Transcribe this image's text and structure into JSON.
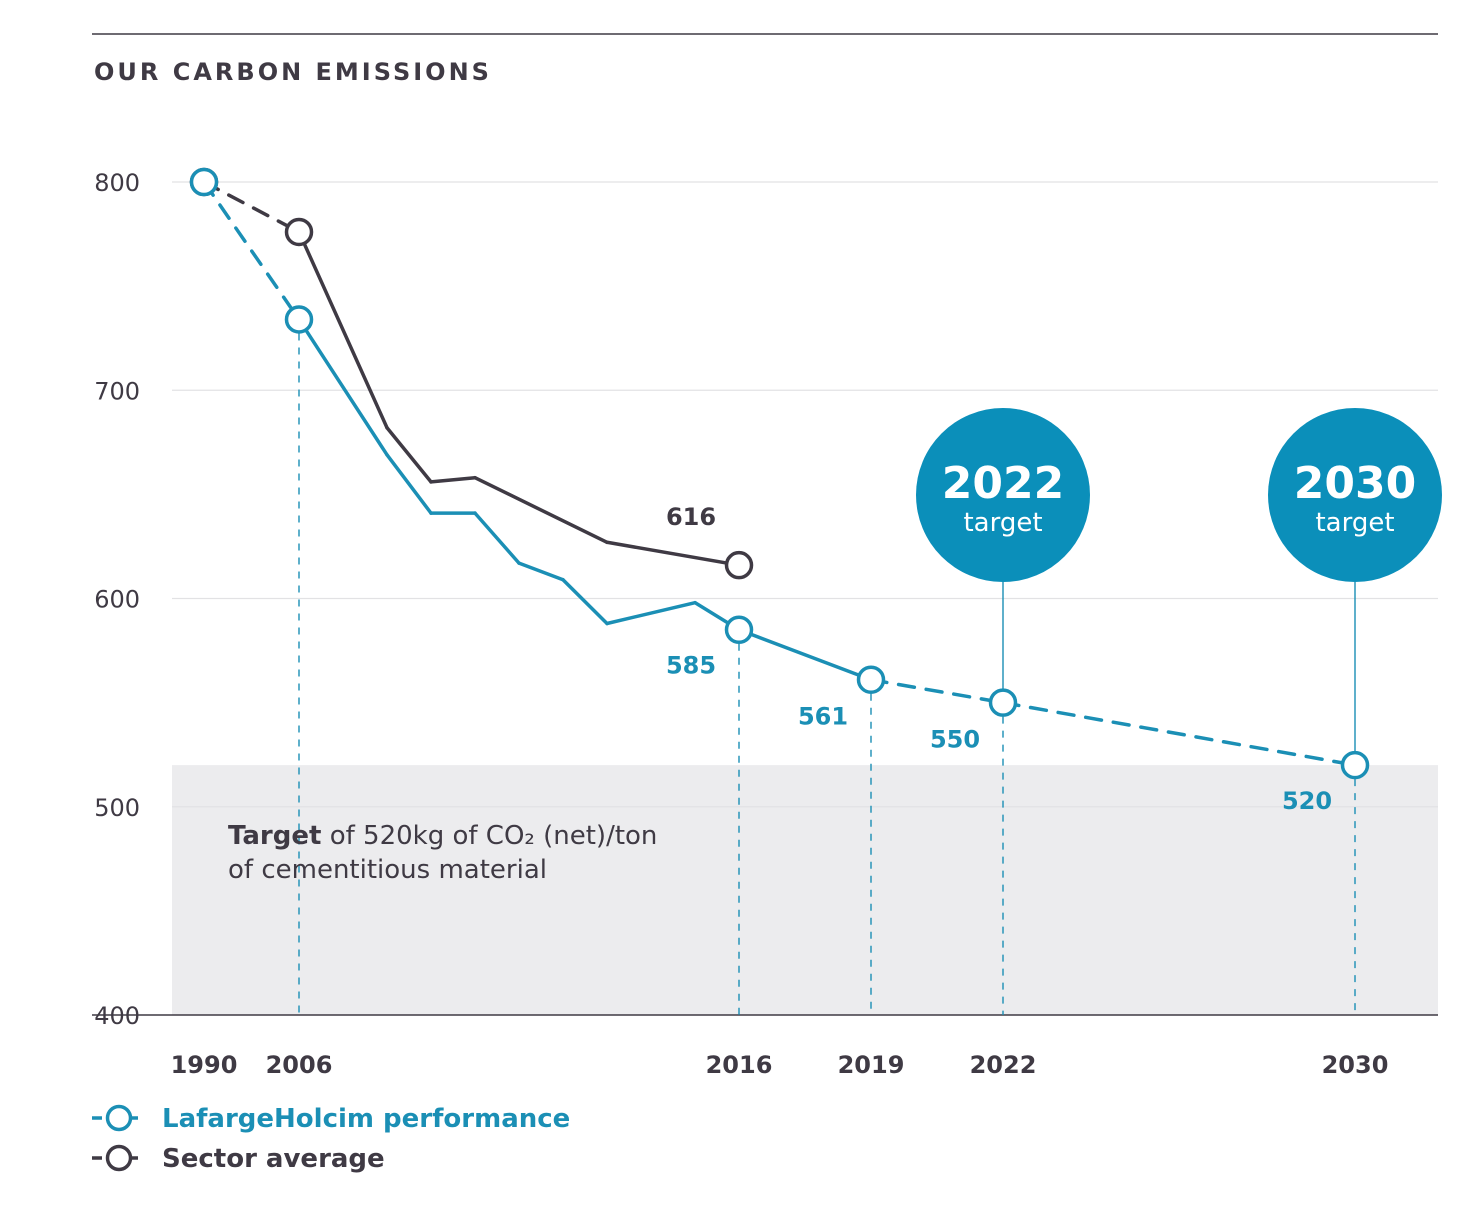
{
  "chart_data": {
    "type": "line",
    "title": "OUR CARBON EMISSIONS",
    "ylim": [
      400,
      800
    ],
    "yticks": [
      400,
      500,
      600,
      700,
      800
    ],
    "xlim": [
      1990,
      2030
    ],
    "xtick_labels": [
      1990,
      2006,
      2016,
      2019,
      2022,
      2030
    ],
    "series": [
      {
        "name": "LafargeHolcim performance",
        "color": "#1b8fb5",
        "points": [
          {
            "x": 1990,
            "y": 800,
            "marker": true
          },
          {
            "x": 2006,
            "y": 734,
            "marker": true
          },
          {
            "x": 2008,
            "y": 669
          },
          {
            "x": 2009,
            "y": 641
          },
          {
            "x": 2010,
            "y": 641
          },
          {
            "x": 2011,
            "y": 617
          },
          {
            "x": 2012,
            "y": 609
          },
          {
            "x": 2013,
            "y": 588
          },
          {
            "x": 2015,
            "y": 598
          },
          {
            "x": 2016,
            "y": 585,
            "marker": true
          },
          {
            "x": 2019,
            "y": 561,
            "marker": true
          },
          {
            "x": 2022,
            "y": 550,
            "marker": true
          },
          {
            "x": 2030,
            "y": 520,
            "marker": true
          }
        ],
        "dashed_segments": [
          [
            1990,
            2006
          ],
          [
            2019,
            2030
          ]
        ]
      },
      {
        "name": "Sector average",
        "color": "#3f3a44",
        "points": [
          {
            "x": 1990,
            "y": 800,
            "marker": true
          },
          {
            "x": 2006,
            "y": 776,
            "marker": true
          },
          {
            "x": 2008,
            "y": 682
          },
          {
            "x": 2009,
            "y": 656
          },
          {
            "x": 2010,
            "y": 658
          },
          {
            "x": 2013,
            "y": 627
          },
          {
            "x": 2016,
            "y": 616,
            "marker": true
          }
        ],
        "dashed_segments": [
          [
            1990,
            2006
          ]
        ]
      }
    ],
    "data_labels": [
      {
        "series": "Sector average",
        "x": 2016,
        "value": "616"
      },
      {
        "series": "LafargeHolcim performance",
        "x": 2016,
        "value": "585"
      },
      {
        "series": "LafargeHolcim performance",
        "x": 2019,
        "value": "561"
      },
      {
        "series": "LafargeHolcim performance",
        "x": 2022,
        "value": "550"
      },
      {
        "series": "LafargeHolcim performance",
        "x": 2030,
        "value": "520"
      }
    ],
    "target_band": {
      "from": 400,
      "to": 520
    },
    "annotation": {
      "bold": "Target",
      "line1_rest": " of 520kg of CO₂ (net)/ton",
      "line2": "of cementitious material"
    },
    "target_bubbles": [
      {
        "x": 2022,
        "year": "2022",
        "sub": "target"
      },
      {
        "x": 2030,
        "year": "2030",
        "sub": "target"
      }
    ],
    "legend": [
      {
        "name": "LafargeHolcim performance",
        "color": "#1b8fb5"
      },
      {
        "name": "Sector average",
        "color": "#3f3a44"
      }
    ]
  }
}
